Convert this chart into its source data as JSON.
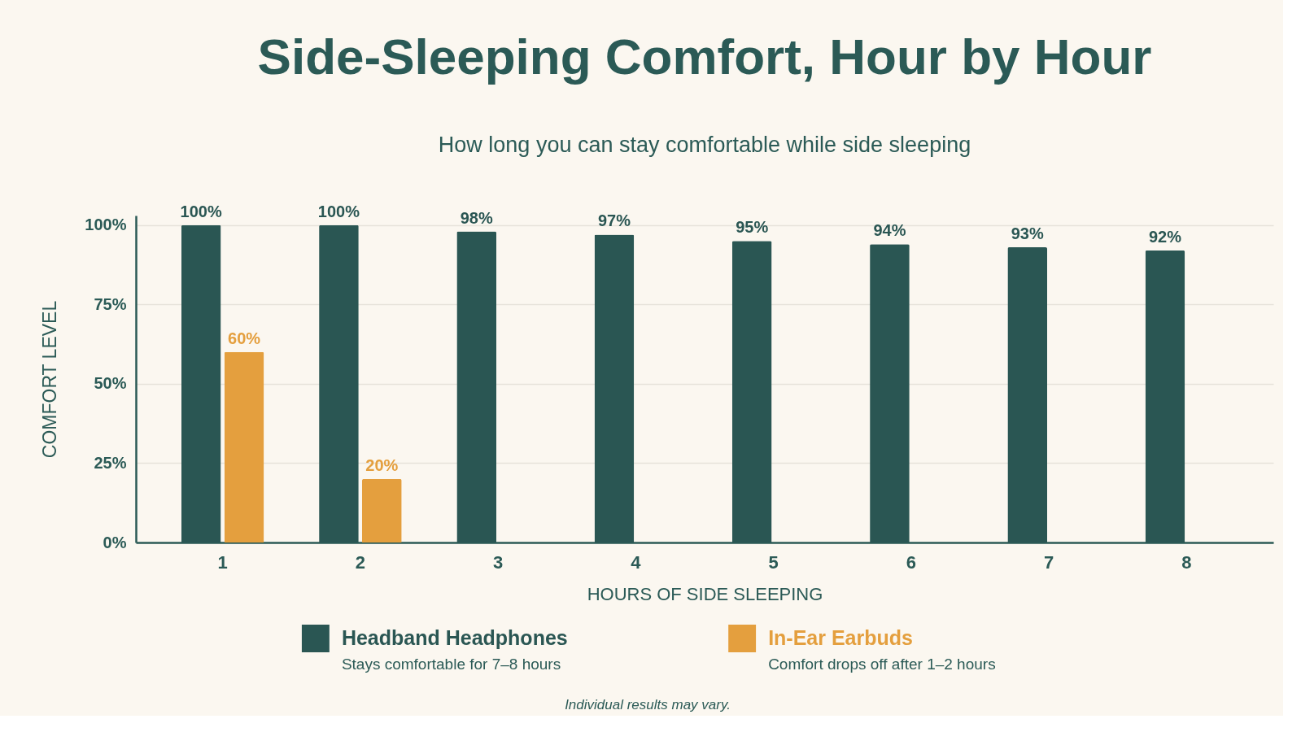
{
  "chart_data": {
    "type": "bar",
    "title": "Side-Sleeping Comfort, Hour by Hour",
    "subtitle": "How long you can stay comfortable while side sleeping",
    "xlabel": "HOURS OF SIDE SLEEPING",
    "ylabel": "COMFORT LEVEL",
    "categories": [
      "1",
      "2",
      "3",
      "4",
      "5",
      "6",
      "7",
      "8"
    ],
    "series": [
      {
        "name": "Headband Headphones",
        "color": "#2a5653",
        "values": [
          100,
          100,
          98,
          97,
          95,
          94,
          93,
          92
        ],
        "value_labels": [
          "100%",
          "100%",
          "98%",
          "97%",
          "95%",
          "94%",
          "93%",
          "92%"
        ]
      },
      {
        "name": "In-Ear Earbuds",
        "color": "#e49f3e",
        "values": [
          60,
          20,
          null,
          null,
          null,
          null,
          null,
          null
        ],
        "value_labels": [
          "60%",
          "20%",
          null,
          null,
          null,
          null,
          null,
          null
        ]
      }
    ],
    "ylim": [
      0,
      103
    ],
    "yticks": [
      {
        "value": 0,
        "label": "0%"
      },
      {
        "value": 25,
        "label": "25%"
      },
      {
        "value": 50,
        "label": "50%"
      },
      {
        "value": 75,
        "label": "75%"
      },
      {
        "value": 100,
        "label": "100%"
      }
    ],
    "grid": "y",
    "legend": "bottom",
    "annotations": [
      "Stays comfortable for 7–8 hours",
      "Comfort drops off after 1–2 hours",
      "Individual results may vary."
    ]
  }
}
